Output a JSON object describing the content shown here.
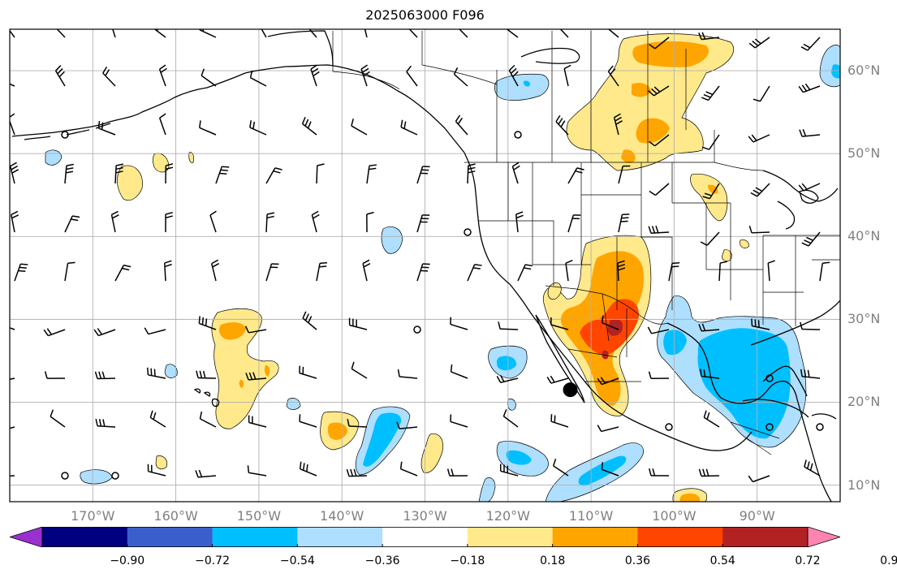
{
  "title": "2025063000 F096",
  "map": {
    "lon_range": [
      -180,
      -80
    ],
    "lat_range": [
      8,
      65
    ],
    "longitude_labels": [
      {
        "lon": -170,
        "text": "170°W"
      },
      {
        "lon": -160,
        "text": "160°W"
      },
      {
        "lon": -150,
        "text": "150°W"
      },
      {
        "lon": -140,
        "text": "140°W"
      },
      {
        "lon": -130,
        "text": "130°W"
      },
      {
        "lon": -120,
        "text": "120°W"
      },
      {
        "lon": -110,
        "text": "110°W"
      },
      {
        "lon": -100,
        "text": "100°W"
      },
      {
        "lon": -90,
        "text": "90°W"
      }
    ],
    "latitude_labels": [
      {
        "lat": 60,
        "text": "60°N"
      },
      {
        "lat": 50,
        "text": "50°N"
      },
      {
        "lat": 40,
        "text": "40°N"
      },
      {
        "lat": 30,
        "text": "30°N"
      },
      {
        "lat": 20,
        "text": "20°N"
      },
      {
        "lat": 10,
        "text": "10°N"
      }
    ],
    "grid": true,
    "marker": {
      "type": "black-dot",
      "lon": -112.5,
      "lat": 21.5
    }
  },
  "colorbar": {
    "colors": [
      "#9b30d0",
      "#000080",
      "#3a5fcd",
      "#00bfff",
      "#aedfff",
      "#ffffff",
      "#ffe98a",
      "#ffa500",
      "#ff4500",
      "#b22222",
      "#ff85b0"
    ],
    "ticks": [
      {
        "value": -0.9,
        "text": "−0.90"
      },
      {
        "value": -0.72,
        "text": "−0.72"
      },
      {
        "value": -0.54,
        "text": "−0.54"
      },
      {
        "value": -0.36,
        "text": "−0.36"
      },
      {
        "value": -0.18,
        "text": "−0.18"
      },
      {
        "value": 0.18,
        "text": "0.18"
      },
      {
        "value": 0.36,
        "text": "0.36"
      },
      {
        "value": 0.54,
        "text": "0.54"
      },
      {
        "value": 0.72,
        "text": "0.72"
      },
      {
        "value": 0.9,
        "text": "0.90"
      }
    ],
    "extend": "both"
  }
}
